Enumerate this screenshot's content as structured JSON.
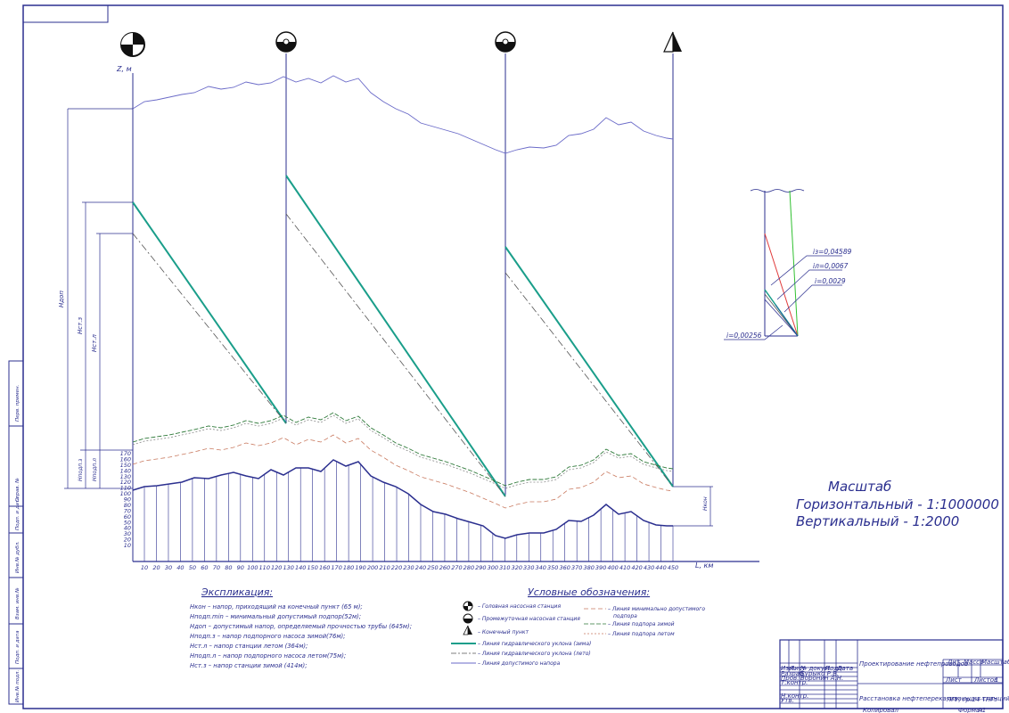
{
  "axis": {
    "z_label": "Z, м",
    "l_label": "L, км"
  },
  "x_ticks": [
    "10",
    "20",
    "30",
    "40",
    "50",
    "60",
    "70",
    "80",
    "90",
    "100",
    "110",
    "120",
    "130",
    "140",
    "150",
    "160",
    "170",
    "180",
    "190",
    "200",
    "210",
    "220",
    "230",
    "240",
    "250",
    "260",
    "270",
    "280",
    "290",
    "300",
    "310",
    "320",
    "330",
    "340",
    "350",
    "360",
    "370",
    "380",
    "390",
    "400",
    "410",
    "420",
    "430",
    "440",
    "450"
  ],
  "y_ticks": [
    "170",
    "160",
    "150",
    "140",
    "130",
    "120",
    "110",
    "100",
    "90",
    "80",
    "70",
    "60",
    "50",
    "40",
    "30",
    "20",
    "10"
  ],
  "heads": {
    "h_dop": "Hдоп",
    "h_st_z": "Hст.з",
    "h_st_l": "Hст.л",
    "h_podp_z": "Hподп.з",
    "h_podp_l": "Hподп.л",
    "h_kon": "Hкон"
  },
  "slopes": [
    {
      "label": "iз=0,04589",
      "color": "#e03a3a"
    },
    {
      "label": "iл=0,0067",
      "color": "#2b2f8f"
    },
    {
      "label": "i=0,0029",
      "color": "#1a9e8a"
    },
    {
      "label": "i=0,00256",
      "color": "#2b2f8f"
    }
  ],
  "scale": {
    "title": "Масштаб",
    "horizontal": "Горизонтальный - 1:1000000",
    "vertical": "Вертикальный - 1:2000"
  },
  "explication": {
    "title": "Экспликация:",
    "items": [
      "Hкон – напор, приходящий на конечный пункт (65 м);",
      "Hподп.min – минимальный допустимый подпор(52м);",
      "Hдоп – допустимый напор, определяемый прочностью трубы (645м);",
      "Hподп.з – напор подпорного насоса зимой(76м);",
      "Hст.л – напор станции летом (364м);",
      "Hподп.л – напор подпорного насоса летом(75м);",
      "Hст.з – напор станции зимой (414м);"
    ]
  },
  "legend": {
    "title": "Условные обозначения:",
    "left": [
      "– Головная насосная станция",
      "– Промежуточная насосная станция",
      "– Конечный пункт",
      "– Линия гидравлического уклона (зима)",
      "– Линия гидравлического уклона (лето)",
      "– Линия допустимого напора"
    ],
    "right": [
      "– Линия минимально допустимого подпора",
      "– Линия подпора зимой",
      "– Линия подпора летом"
    ],
    "colors": {
      "winter": "#1a9e8a",
      "summer": "#555555",
      "allowed": "#6a6ac8",
      "minsub": "#c97a60",
      "subw": "#2f7a3a",
      "subs": "#c97a60"
    }
  },
  "title_block": {
    "lit": "Лит.",
    "massa": "Масса",
    "masshtab": "Масштаб",
    "list": "Лист",
    "listov": "Листов",
    "listov_val": "1",
    "title": "Проектирование нефтепроводов",
    "subtitle": "Расстановка нефтеперекачивающих станций",
    "org": "ПГУ, гр.14-ТНГз",
    "rows": [
      "Изм.",
      "Лист",
      "№ докум.",
      "Подп.",
      "Дата"
    ],
    "razrab": "Разраб.",
    "razrab_name": "Бурыко Р.В.",
    "prov": "Пров.",
    "prov_name": "Воронин А.Н.",
    "tkontr": "Т.контр.",
    "nkontr": "Н.контр.",
    "utv": "Утв.",
    "kopiroval": "Копировал",
    "format": "Формат",
    "format_val": "А1"
  },
  "side_labels": [
    "Инв.№ подл.",
    "Подп. и дата",
    "Взам. инв.№",
    "Инв.№ дубл.",
    "Подп. и дата",
    "Справ. №",
    "Перв. примен."
  ]
}
